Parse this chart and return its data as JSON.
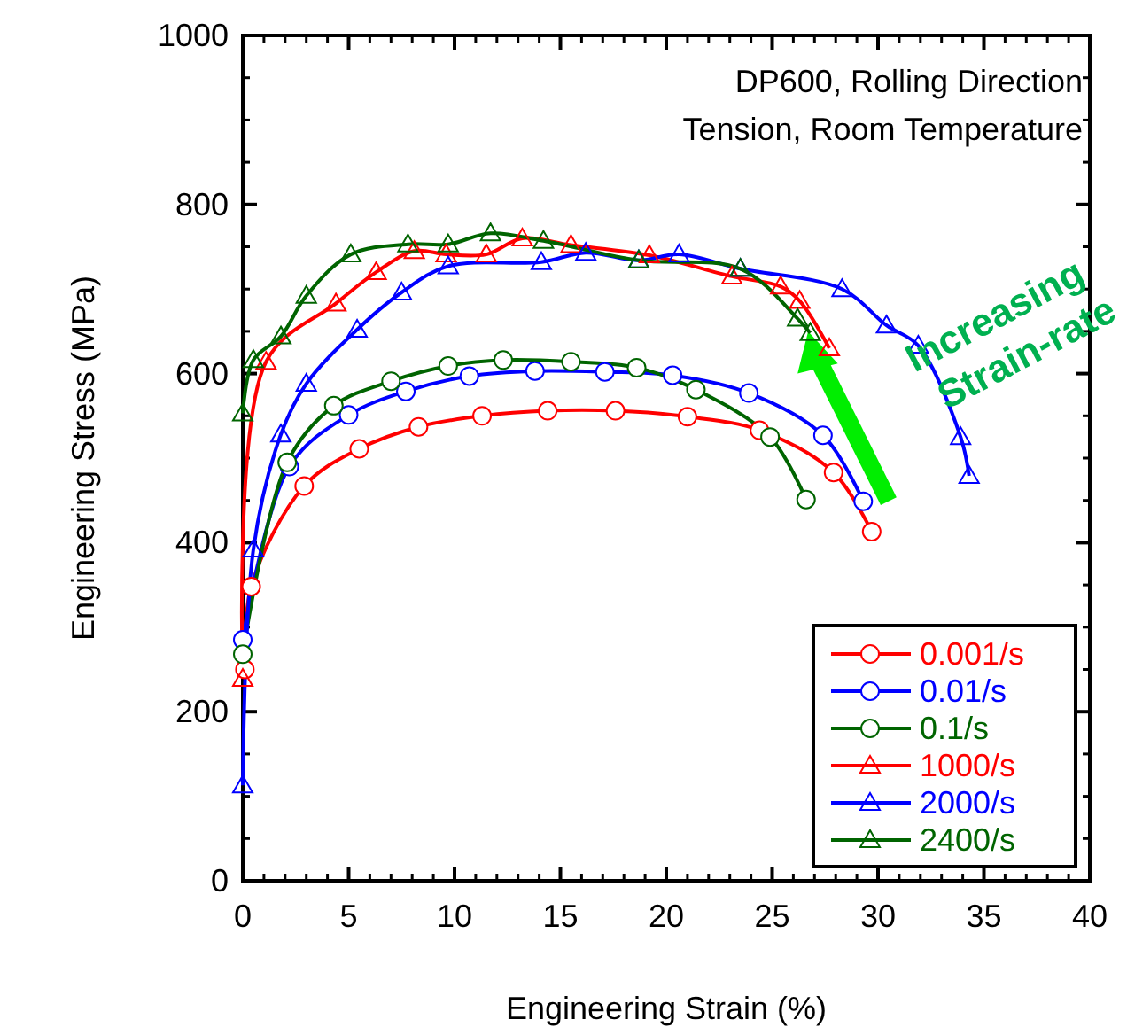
{
  "chart_data": {
    "type": "line",
    "xlabel": "Engineering Strain (%)",
    "ylabel": "Engineering Stress (MPa)",
    "xlim": [
      0,
      40
    ],
    "xticks": [
      0,
      5,
      10,
      15,
      20,
      25,
      30,
      35,
      40
    ],
    "ylim": [
      0,
      1000
    ],
    "yticks": [
      0,
      200,
      400,
      600,
      800,
      1000
    ],
    "grid": false,
    "legend": "bottom right",
    "line_style": "solid",
    "annotations": [
      "DP600, Rolling Direction",
      "Tension, Room Temperature",
      "Increasing Strain-rate"
    ],
    "series": [
      {
        "name": "0.001/s",
        "color": "#ff0000",
        "marker": "circle",
        "x": [
          0.1,
          0.4,
          2.9,
          5.5,
          8.3,
          11.3,
          14.4,
          17.6,
          21.0,
          24.4,
          27.9,
          29.7
        ],
        "values": [
          250,
          348,
          467,
          511,
          537,
          550,
          556,
          556,
          549,
          533,
          483,
          413
        ]
      },
      {
        "name": "0.01/s",
        "color": "#0000ff",
        "marker": "circle",
        "x": [
          0,
          2.2,
          5.0,
          7.7,
          10.7,
          13.8,
          17.1,
          20.3,
          23.9,
          27.4,
          29.3
        ],
        "values": [
          285,
          490,
          551,
          579,
          597,
          603,
          602,
          598,
          577,
          527,
          449
        ]
      },
      {
        "name": "0.1/s",
        "color": "#006400",
        "marker": "circle",
        "x": [
          0,
          2.1,
          4.3,
          7.0,
          9.7,
          12.3,
          15.5,
          18.6,
          21.4,
          24.9,
          26.6
        ],
        "values": [
          268,
          495,
          562,
          591,
          609,
          616,
          614,
          607,
          581,
          525,
          451
        ]
      },
      {
        "name": "1000/s",
        "color": "#ff0000",
        "marker": "triangle",
        "x": [
          0,
          1.1,
          4.4,
          6.3,
          8.1,
          9.6,
          11.5,
          13.2,
          15.5,
          19.2,
          23.1,
          25.4,
          26.3,
          27.7
        ],
        "values": [
          239,
          614,
          683,
          720,
          745,
          741,
          741,
          760,
          752,
          740,
          715,
          703,
          686,
          630
        ]
      },
      {
        "name": "2000/s",
        "color": "#0000ff",
        "marker": "triangle",
        "x": [
          0,
          0.5,
          1.8,
          3.0,
          5.4,
          7.5,
          9.7,
          14.1,
          16.2,
          18.7,
          20.6,
          23.5,
          28.3,
          30.4,
          31.9,
          33.9,
          34.3
        ],
        "values": [
          113,
          392,
          528,
          588,
          652,
          696,
          727,
          732,
          743,
          734,
          741,
          724,
          700,
          657,
          633,
          525,
          479
        ]
      },
      {
        "name": "2400/s",
        "color": "#006400",
        "marker": "triangle",
        "x": [
          0,
          0.5,
          1.8,
          3.0,
          5.1,
          7.8,
          9.7,
          11.7,
          14.2,
          18.7,
          23.5,
          26.2,
          26.8
        ],
        "values": [
          553,
          616,
          644,
          692,
          741,
          753,
          753,
          766,
          757,
          734,
          724,
          665,
          648
        ]
      }
    ]
  }
}
